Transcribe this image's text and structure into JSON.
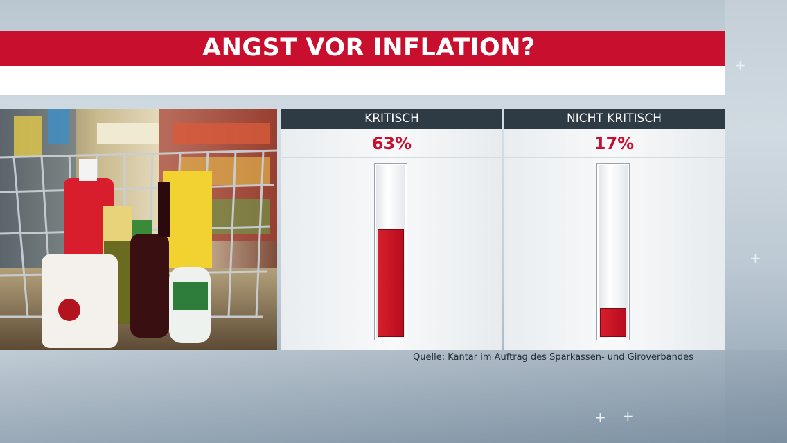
{
  "title": "ANGST VOR INFLATION?",
  "chart_data": {
    "type": "bar",
    "categories": [
      "KRITISCH",
      "NICHT KRITISCH"
    ],
    "values": [
      63,
      17
    ],
    "value_labels": [
      "63%",
      "17%"
    ],
    "ylim": [
      0,
      100
    ],
    "grid": false
  },
  "source": "Quelle: Kantar im Auftrag des Sparkassen- und Giroverbandes",
  "colors": {
    "accent_red": "#c8102e",
    "header_dark": "#2e3b45"
  }
}
